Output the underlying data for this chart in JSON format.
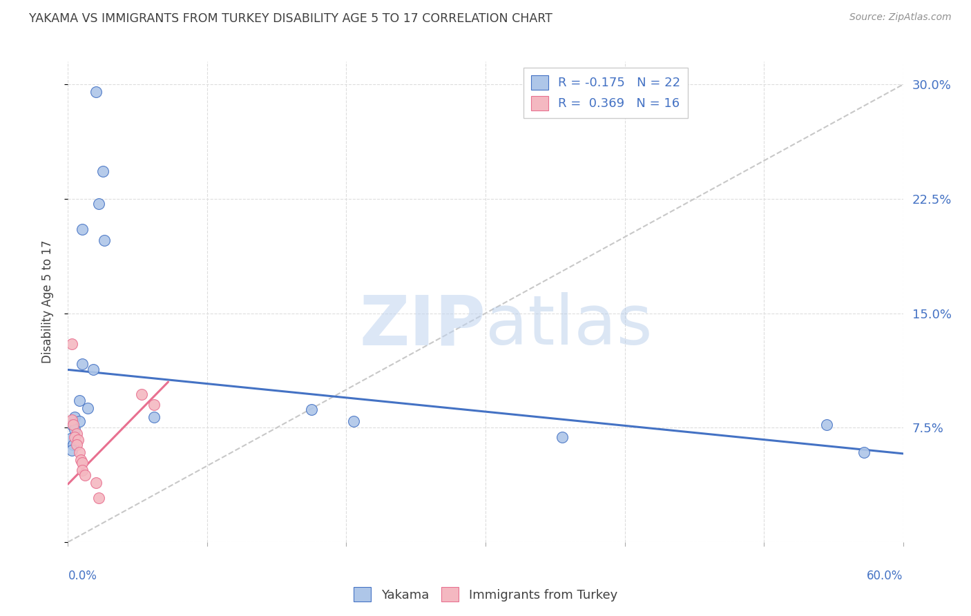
{
  "title": "YAKAMA VS IMMIGRANTS FROM TURKEY DISABILITY AGE 5 TO 17 CORRELATION CHART",
  "source": "Source: ZipAtlas.com",
  "ylabel": "Disability Age 5 to 17",
  "yticks": [
    0.0,
    0.075,
    0.15,
    0.225,
    0.3
  ],
  "ytick_labels": [
    "",
    "7.5%",
    "15.0%",
    "22.5%",
    "30.0%"
  ],
  "xlim": [
    0.0,
    0.6
  ],
  "ylim": [
    0.0,
    0.315
  ],
  "legend_entries": [
    {
      "label": "R = -0.175   N = 22",
      "color": "#aec6e8"
    },
    {
      "label": "R =  0.369   N = 16",
      "color": "#f4b8c1"
    }
  ],
  "legend_bottom": [
    "Yakama",
    "Immigrants from Turkey"
  ],
  "yakama_points": [
    [
      0.02,
      0.295
    ],
    [
      0.025,
      0.243
    ],
    [
      0.022,
      0.222
    ],
    [
      0.01,
      0.205
    ],
    [
      0.026,
      0.198
    ],
    [
      0.01,
      0.117
    ],
    [
      0.018,
      0.113
    ],
    [
      0.008,
      0.093
    ],
    [
      0.014,
      0.088
    ],
    [
      0.005,
      0.082
    ],
    [
      0.008,
      0.079
    ],
    [
      0.003,
      0.077
    ],
    [
      0.005,
      0.074
    ],
    [
      0.002,
      0.068
    ],
    [
      0.004,
      0.064
    ],
    [
      0.003,
      0.06
    ],
    [
      0.062,
      0.082
    ],
    [
      0.175,
      0.087
    ],
    [
      0.205,
      0.079
    ],
    [
      0.355,
      0.069
    ],
    [
      0.545,
      0.077
    ],
    [
      0.572,
      0.059
    ]
  ],
  "turkey_points": [
    [
      0.003,
      0.13
    ],
    [
      0.053,
      0.097
    ],
    [
      0.062,
      0.09
    ],
    [
      0.003,
      0.08
    ],
    [
      0.004,
      0.077
    ],
    [
      0.006,
      0.071
    ],
    [
      0.005,
      0.069
    ],
    [
      0.007,
      0.067
    ],
    [
      0.006,
      0.064
    ],
    [
      0.008,
      0.059
    ],
    [
      0.009,
      0.054
    ],
    [
      0.01,
      0.052
    ],
    [
      0.01,
      0.047
    ],
    [
      0.012,
      0.044
    ],
    [
      0.02,
      0.039
    ],
    [
      0.022,
      0.029
    ]
  ],
  "yakama_line_x": [
    0.0,
    0.6
  ],
  "yakama_line_y": [
    0.113,
    0.058
  ],
  "turkey_line_x": [
    0.0,
    0.072
  ],
  "turkey_line_y": [
    0.038,
    0.105
  ],
  "diagonal_line_x": [
    0.0,
    0.6
  ],
  "diagonal_line_y": [
    0.0,
    0.3
  ],
  "yakama_color": "#aec6e8",
  "turkey_color": "#f4b8c1",
  "yakama_line_color": "#4472c4",
  "turkey_line_color": "#e87090",
  "diagonal_color": "#c8c8c8",
  "background_color": "#ffffff",
  "title_color": "#404040",
  "source_color": "#909090",
  "axis_color": "#4472c4",
  "grid_color": "#dddddd",
  "xtick_positions": [
    0.0,
    0.1,
    0.2,
    0.3,
    0.4,
    0.5,
    0.6
  ],
  "watermark_zip": "ZIP",
  "watermark_atlas": "atlas",
  "watermark_color_zip": "#c5d8f0",
  "watermark_color_atlas": "#b8cce8"
}
